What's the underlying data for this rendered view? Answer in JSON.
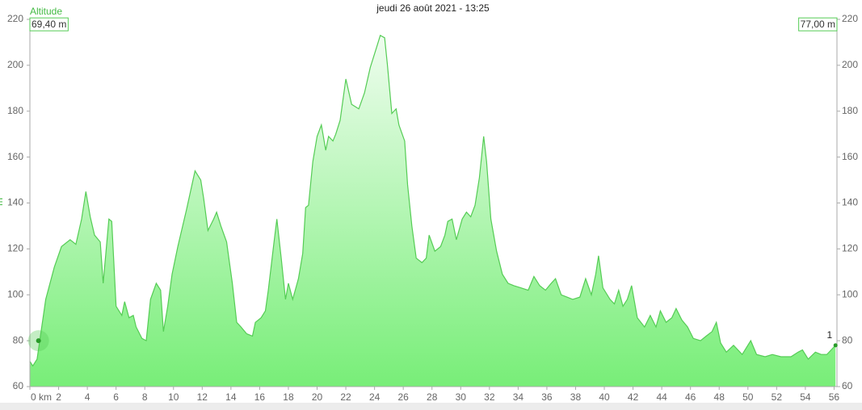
{
  "chart_data": {
    "type": "area",
    "title": "jeudi 26 août 2021 - 13:25",
    "y_axis_name": "Altitude",
    "y_label": "m",
    "y_readout": "69,40 m",
    "y2_readout": "77,00 m",
    "cursor": {
      "x": 0.6,
      "y": 80
    },
    "end_label": "1",
    "color": "#55cc55",
    "fill_top": "#effdef",
    "fill_bottom": "#78ee78",
    "x": [
      0,
      0.2,
      0.5,
      1.1,
      1.7,
      2.2,
      2.8,
      3.2,
      3.6,
      3.9,
      4.2,
      4.5,
      4.9,
      5.1,
      5.5,
      5.7,
      6.0,
      6.4,
      6.6,
      6.9,
      7.2,
      7.4,
      7.8,
      8.1,
      8.4,
      8.8,
      9.1,
      9.3,
      9.6,
      9.9,
      10.3,
      10.9,
      11.5,
      11.9,
      12.1,
      12.4,
      12.8,
      13.0,
      13.3,
      13.7,
      14.1,
      14.4,
      14.7,
      15.1,
      15.5,
      15.7,
      16.1,
      16.4,
      16.6,
      17.0,
      17.2,
      17.5,
      17.8,
      18.0,
      18.3,
      18.7,
      19.0,
      19.2,
      19.4,
      19.7,
      20.0,
      20.3,
      20.6,
      20.8,
      21.1,
      21.3,
      21.6,
      22.0,
      22.4,
      22.9,
      23.3,
      23.7,
      24.2,
      24.4,
      24.7,
      24.9,
      25.2,
      25.5,
      25.7,
      26.1,
      26.3,
      26.6,
      26.9,
      27.3,
      27.6,
      27.8,
      28.2,
      28.6,
      28.9,
      29.1,
      29.4,
      29.7,
      30.1,
      30.4,
      30.7,
      31.0,
      31.3,
      31.6,
      31.8,
      32.1,
      32.5,
      32.9,
      33.3,
      33.7,
      34.2,
      34.7,
      35.1,
      35.5,
      35.9,
      36.3,
      36.6,
      37.0,
      37.4,
      37.8,
      38.3,
      38.7,
      39.1,
      39.4,
      39.6,
      39.9,
      40.4,
      40.7,
      41.0,
      41.3,
      41.6,
      41.9,
      42.3,
      42.8,
      43.2,
      43.6,
      43.9,
      44.3,
      44.7,
      45.0,
      45.4,
      45.8,
      46.2,
      46.7,
      47.1,
      47.5,
      47.8,
      48.1,
      48.5,
      49.0,
      49.6,
      50.2,
      50.6,
      51.2,
      51.7,
      52.3,
      53.0,
      53.5,
      53.8,
      54.2,
      54.7,
      55.1,
      55.5,
      55.8,
      56.1
    ],
    "values": [
      71,
      69,
      72,
      98,
      112,
      121,
      124,
      122,
      133,
      145,
      134,
      126,
      123,
      105,
      133,
      132,
      95,
      91,
      97,
      90,
      91,
      86,
      81,
      80,
      98,
      105,
      102,
      84,
      95,
      109,
      121,
      137,
      154,
      150,
      142,
      128,
      133,
      136,
      130,
      123,
      105,
      88,
      86,
      83,
      82,
      88,
      90,
      93,
      102,
      123,
      133,
      116,
      98,
      105,
      98,
      107,
      118,
      138,
      139,
      158,
      169,
      174,
      163,
      169,
      167,
      170,
      176,
      194,
      183,
      181,
      188,
      199,
      209,
      213,
      212,
      200,
      179,
      181,
      174,
      167,
      148,
      130,
      116,
      114,
      116,
      126,
      119,
      121,
      126,
      132,
      133,
      124,
      133,
      136,
      134,
      139,
      151,
      169,
      158,
      133,
      119,
      109,
      105,
      104,
      103,
      102,
      108,
      104,
      102,
      105,
      107,
      100,
      99,
      98,
      99,
      107,
      100,
      109,
      117,
      103,
      98,
      96,
      102,
      95,
      98,
      104,
      90,
      86,
      91,
      86,
      93,
      88,
      90,
      94,
      89,
      86,
      81,
      80,
      82,
      84,
      88,
      79,
      75,
      78,
      74,
      80,
      74,
      73,
      74,
      73,
      73,
      75,
      76,
      72,
      75,
      74,
      74,
      76,
      78
    ],
    "xlim": [
      0,
      56.2
    ],
    "xticks": [
      {
        "value": 0,
        "label": "0 km"
      },
      2,
      4,
      6,
      8,
      10,
      12,
      14,
      16,
      18,
      20,
      22,
      24,
      26,
      28,
      30,
      32,
      34,
      36,
      38,
      40,
      42,
      44,
      46,
      48,
      50,
      52,
      54,
      56
    ],
    "ylim": [
      60,
      220
    ],
    "yticks": [
      60,
      80,
      100,
      120,
      140,
      160,
      180,
      200,
      220
    ],
    "y2lim": [
      60,
      220
    ],
    "y2ticks": [
      60,
      80,
      100,
      120,
      140,
      160,
      180,
      200,
      220
    ]
  }
}
